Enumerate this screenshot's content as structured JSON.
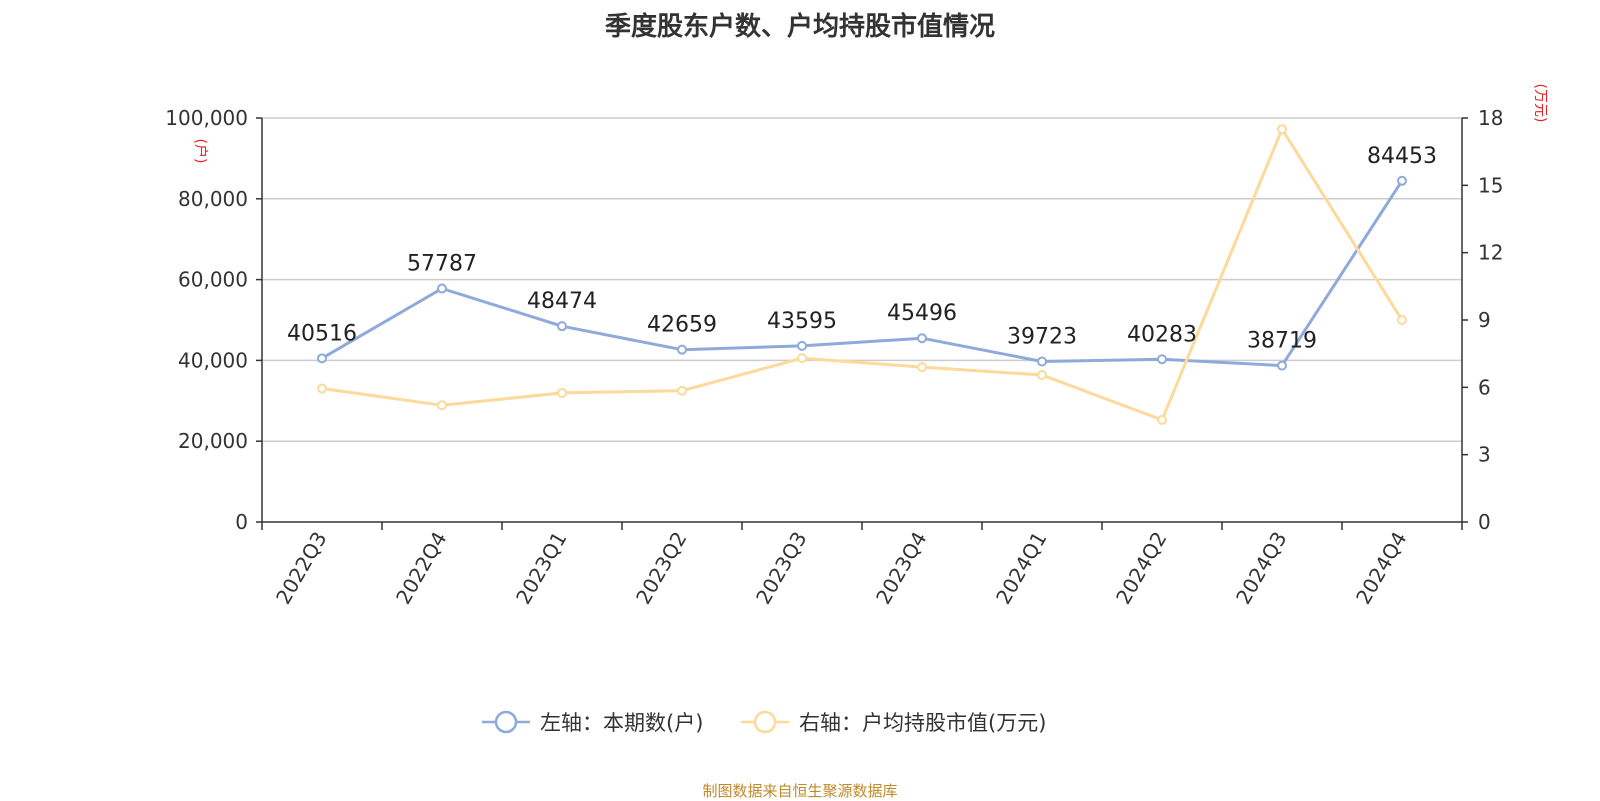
{
  "title": "季度股东户数、户均持股市值情况",
  "source": "制图数据来自恒生聚源数据库",
  "chart_data": {
    "type": "line",
    "categories": [
      "2022Q3",
      "2022Q4",
      "2023Q1",
      "2023Q2",
      "2023Q3",
      "2023Q4",
      "2024Q1",
      "2024Q2",
      "2024Q3",
      "2024Q4"
    ],
    "left_axis": {
      "unit": "(户)",
      "ylim": [
        0,
        100000
      ],
      "ticks": [
        "0",
        "20,000",
        "40,000",
        "60,000",
        "80,000",
        "100,000"
      ]
    },
    "right_axis": {
      "unit": "(万元)",
      "ylim": [
        0,
        18
      ],
      "ticks": [
        "0",
        "3",
        "6",
        "9",
        "12",
        "15",
        "18"
      ]
    },
    "series": [
      {
        "name": "左轴：本期数(户)",
        "axis": "left",
        "color": "#8eaadb",
        "values": [
          40516,
          57787,
          48474,
          42659,
          43595,
          45496,
          39723,
          40283,
          38719,
          84453
        ],
        "labels": [
          "40516",
          "57787",
          "48474",
          "42659",
          "43595",
          "45496",
          "39723",
          "40283",
          "38719",
          "84453"
        ]
      },
      {
        "name": "右轴：户均持股市值(万元)",
        "axis": "right",
        "color": "#fdd99b",
        "values": [
          5.95,
          5.2,
          5.75,
          5.85,
          7.3,
          6.9,
          6.55,
          4.55,
          17.5,
          9.0
        ]
      }
    ],
    "grid": true,
    "legend_position": "bottom"
  }
}
